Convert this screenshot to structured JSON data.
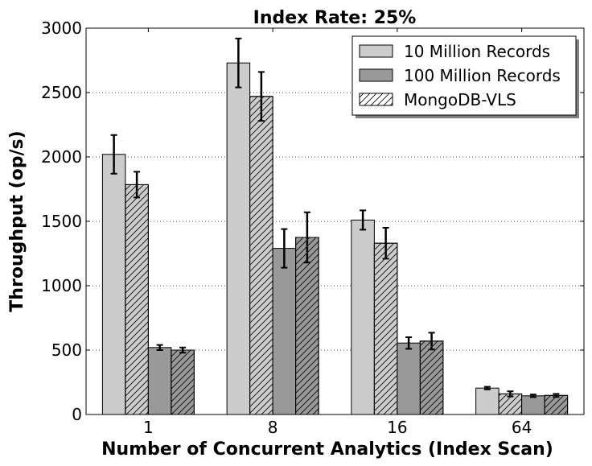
{
  "chart_data": {
    "type": "bar",
    "title": "Index Rate: 25%",
    "xlabel": "Number of Concurrent Analytics (Index Scan)",
    "ylabel": "Throughput (op/s)",
    "ylim": [
      0,
      3000
    ],
    "yticks": [
      "0",
      "500",
      "1000",
      "1500",
      "2000",
      "2500",
      "3000"
    ],
    "grid": "horizontal-dotted",
    "legend_position": "top-right",
    "categories": [
      "1",
      "8",
      "16",
      "64"
    ],
    "series": [
      {
        "name": "10 Million Records",
        "values": [
          2020,
          2730,
          1510,
          205
        ],
        "errors": [
          150,
          190,
          75,
          10
        ],
        "color": "#cccccc",
        "hatch": false
      },
      {
        "name": "",
        "values": [
          1785,
          2470,
          1330,
          160
        ],
        "errors": [
          100,
          190,
          120,
          20
        ],
        "color": "#cccccc",
        "hatch": true
      },
      {
        "name": "100 Million Records",
        "values": [
          520,
          1290,
          555,
          145
        ],
        "errors": [
          20,
          150,
          45,
          10
        ],
        "color": "#999999",
        "hatch": false
      },
      {
        "name": "",
        "values": [
          500,
          1375,
          570,
          148
        ],
        "errors": [
          20,
          195,
          65,
          12
        ],
        "color": "#999999",
        "hatch": true
      }
    ],
    "legend": [
      {
        "label": "10 Million Records",
        "color": "#cccccc",
        "hatch": false
      },
      {
        "label": "100 Million Records",
        "color": "#999999",
        "hatch": false
      },
      {
        "label": "MongoDB-VLS",
        "color": "#ffffff",
        "hatch": true
      }
    ]
  }
}
